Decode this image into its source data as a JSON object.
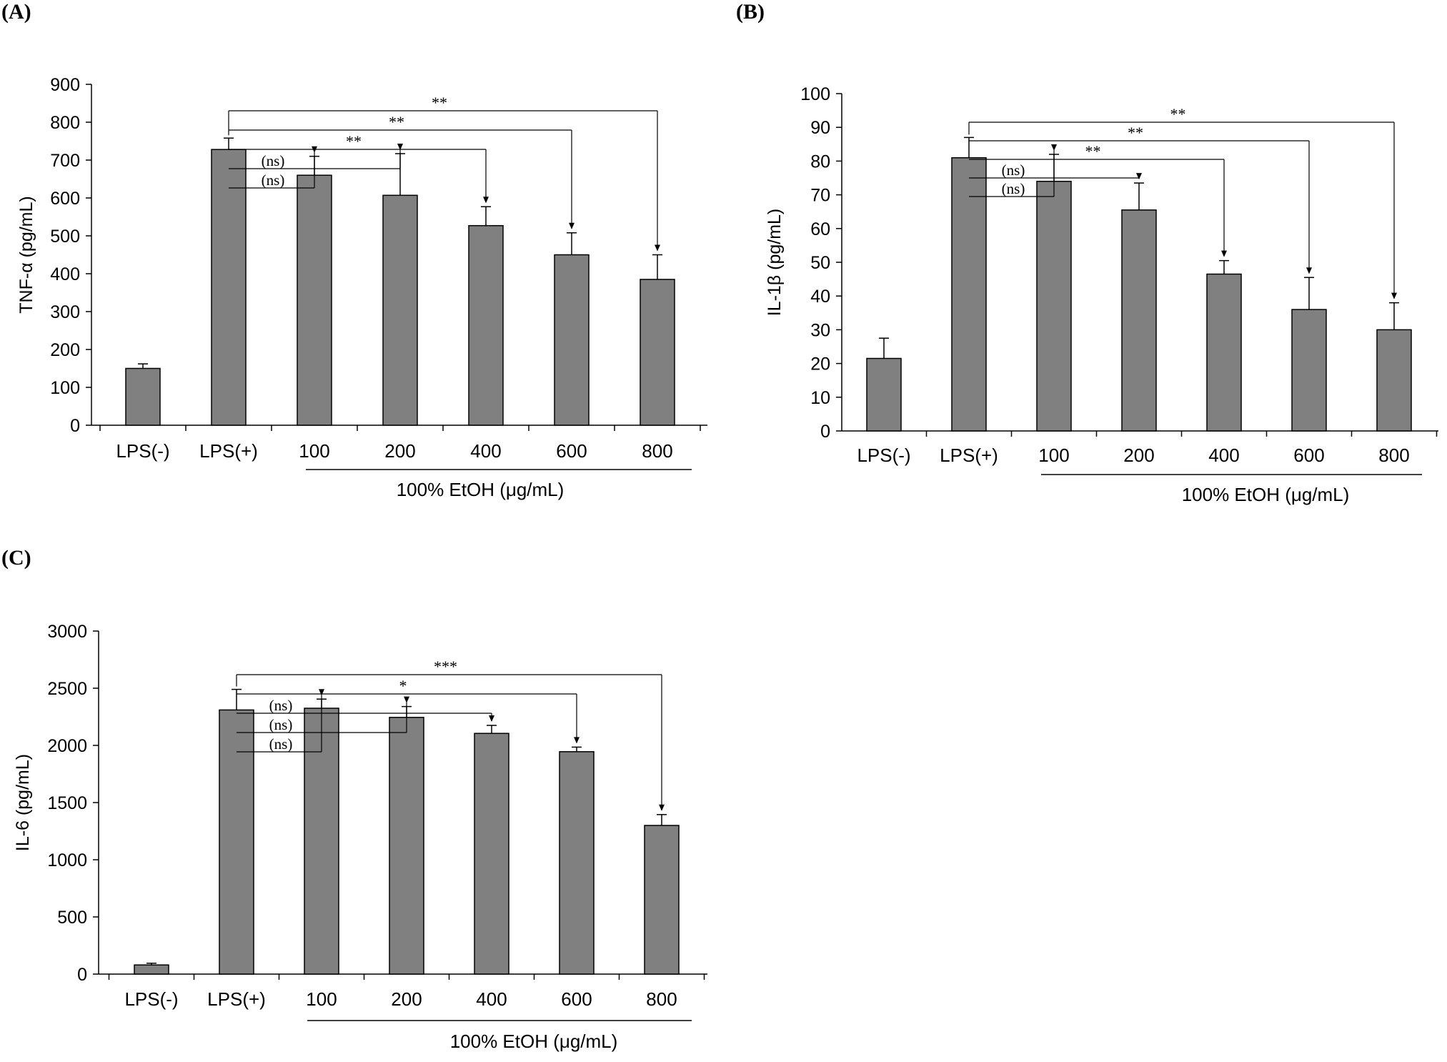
{
  "chart_data": [
    {
      "panel_label": "(A)",
      "type": "bar",
      "ylabel": "TNF-α (pg/mL)",
      "ylim": [
        0,
        900
      ],
      "yticks": [
        0,
        100,
        200,
        300,
        400,
        500,
        600,
        700,
        800,
        900
      ],
      "categories": [
        "LPS(-)",
        "LPS(+)",
        "100",
        "200",
        "400",
        "600",
        "800"
      ],
      "values": [
        150,
        728,
        660,
        607,
        527,
        450,
        385
      ],
      "errors": [
        12,
        30,
        50,
        110,
        50,
        58,
        65
      ],
      "group_label": "100% EtOH (μg/mL)",
      "comparisons": [
        {
          "from": "LPS(+)",
          "to": "100",
          "label": "(ns)"
        },
        {
          "from": "LPS(+)",
          "to": "200",
          "label": "(ns)"
        },
        {
          "from": "LPS(+)",
          "to": "400",
          "label": "**"
        },
        {
          "from": "LPS(+)",
          "to": "600",
          "label": "**"
        },
        {
          "from": "LPS(+)",
          "to": "800",
          "label": "**"
        }
      ],
      "bar_color": "#808080"
    },
    {
      "panel_label": "(B)",
      "type": "bar",
      "ylabel": "IL-1β (pg/mL)",
      "ylim": [
        0,
        100
      ],
      "yticks": [
        0,
        10,
        20,
        30,
        40,
        50,
        60,
        70,
        80,
        90,
        100
      ],
      "categories": [
        "LPS(-)",
        "LPS(+)",
        "100",
        "200",
        "400",
        "600",
        "800"
      ],
      "values": [
        21.5,
        81,
        74,
        65.5,
        46.5,
        36,
        30
      ],
      "errors": [
        6,
        6,
        8,
        8,
        4,
        9.5,
        8
      ],
      "group_label": "100% EtOH (μg/mL)",
      "comparisons": [
        {
          "from": "LPS(+)",
          "to": "100",
          "label": "(ns)"
        },
        {
          "from": "LPS(+)",
          "to": "200",
          "label": "(ns)"
        },
        {
          "from": "LPS(+)",
          "to": "400",
          "label": "**"
        },
        {
          "from": "LPS(+)",
          "to": "600",
          "label": "**"
        },
        {
          "from": "LPS(+)",
          "to": "800",
          "label": "**"
        }
      ],
      "bar_color": "#808080"
    },
    {
      "panel_label": "(C)",
      "type": "bar",
      "ylabel": "IL-6 (pg/mL)",
      "ylim": [
        0,
        3000
      ],
      "yticks": [
        0,
        500,
        1000,
        1500,
        2000,
        2500,
        3000
      ],
      "categories": [
        "LPS(-)",
        "LPS(+)",
        "100",
        "200",
        "400",
        "600",
        "800"
      ],
      "values": [
        80,
        2310,
        2325,
        2245,
        2105,
        1945,
        1300
      ],
      "errors": [
        15,
        180,
        80,
        95,
        70,
        40,
        95
      ],
      "group_label": "100% EtOH (μg/mL)",
      "comparisons": [
        {
          "from": "LPS(+)",
          "to": "100",
          "label": "(ns)"
        },
        {
          "from": "LPS(+)",
          "to": "200",
          "label": "(ns)"
        },
        {
          "from": "LPS(+)",
          "to": "400",
          "label": "(ns)"
        },
        {
          "from": "LPS(+)",
          "to": "600",
          "label": "*"
        },
        {
          "from": "LPS(+)",
          "to": "800",
          "label": "***"
        }
      ],
      "bar_color": "#808080"
    }
  ]
}
